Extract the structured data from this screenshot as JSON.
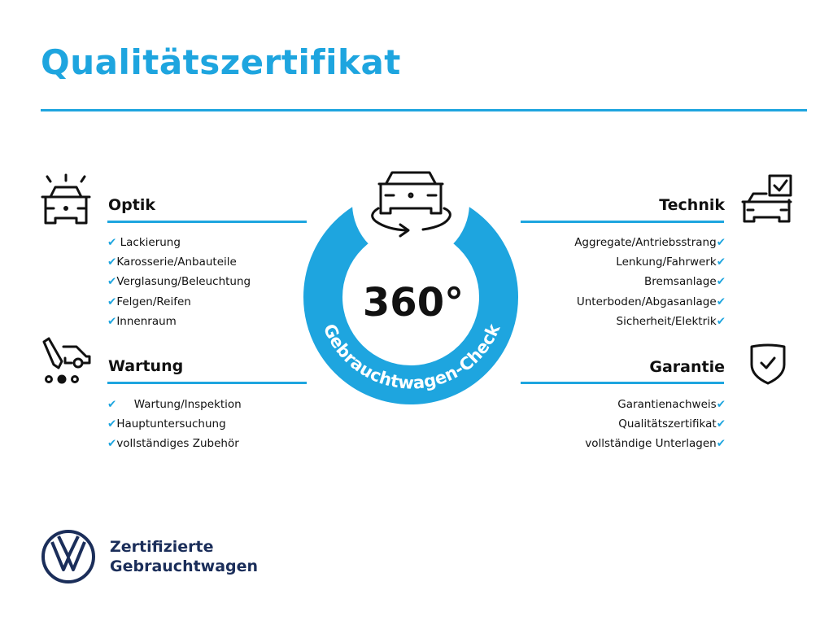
{
  "title": "Qualitätszertifikat",
  "center": {
    "big_text": "360°",
    "ring_text": "Gebrauchtwagen-Check"
  },
  "sections": {
    "optik": {
      "heading": "Optik",
      "items": [
        "Lackierung",
        "Karosserie/Anbauteile",
        "Verglasung/Beleuchtung",
        "Felgen/Reifen",
        "Innenraum"
      ]
    },
    "wartung": {
      "heading": "Wartung",
      "items": [
        "Wartung/Inspektion",
        "Hauptuntersuchung",
        "vollständiges Zubehör"
      ]
    },
    "technik": {
      "heading": "Technik",
      "items": [
        "Aggregate/Antriebsstrang",
        "Lenkung/Fahrwerk",
        "Bremsanlage",
        "Unterboden/Abgasanlage",
        "Sicherheit/Elektrik"
      ]
    },
    "garantie": {
      "heading": "Garantie",
      "items": [
        "Garantienachweis",
        "Qualitätszertifikat",
        "vollständige Unterlagen"
      ]
    }
  },
  "check_mark": "✔",
  "footer": {
    "line1": "Zertifizierte",
    "line2": "Gebrauchtwagen",
    "logo": "VW"
  },
  "colors": {
    "accent": "#1ea5df",
    "brand_navy": "#1b2e5a"
  }
}
